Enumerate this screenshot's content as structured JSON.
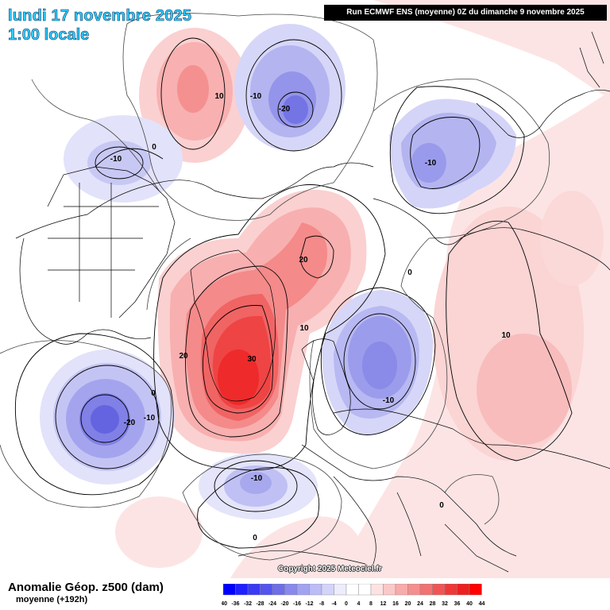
{
  "header": {
    "date": "lundi 17 novembre 2025",
    "time": "1:00 locale",
    "run_info": "Run ECMWF ENS (moyenne) 0Z du dimanche 9 novembre 2025"
  },
  "footer": {
    "title": "Anomalie Géop. z500 (dam)",
    "subtitle": "moyenne   (+192h)",
    "copyright": "Copyright 2025 Meteociel.fr"
  },
  "legend": {
    "values": [
      "-40",
      "-36",
      "-32",
      "-28",
      "-24",
      "-20",
      "-16",
      "-12",
      "-8",
      "-4",
      "0",
      "4",
      "8",
      "12",
      "16",
      "20",
      "24",
      "28",
      "32",
      "36",
      "40",
      "44"
    ],
    "colors": [
      "#0000ff",
      "#1f1fff",
      "#3a3af5",
      "#5454ee",
      "#6e6ee8",
      "#8888ee",
      "#a2a2f2",
      "#bcbcf6",
      "#d4d4fa",
      "#ececfd",
      "#ffffff",
      "#ffffff",
      "#fde2e2",
      "#fbc8c8",
      "#f8abab",
      "#f58f8f",
      "#f27272",
      "#f05555",
      "#ee3838",
      "#ec2020",
      "#ff0000"
    ]
  },
  "contour_labels": [
    {
      "id": "label-10-north-pacific",
      "text": "10"
    },
    {
      "id": "label-m10-bering",
      "text": "-10"
    },
    {
      "id": "label-m20-siberia",
      "text": "-20"
    },
    {
      "id": "label-0-alaska",
      "text": "0"
    },
    {
      "id": "label-m10-alaska",
      "text": "-10"
    },
    {
      "id": "label-m10-east-asia",
      "text": "-10"
    },
    {
      "id": "label-20-arctic",
      "text": "20"
    },
    {
      "id": "label-0-arctic",
      "text": "0"
    },
    {
      "id": "label-10-greenland-east",
      "text": "10"
    },
    {
      "id": "label-20-greenland-west",
      "text": "20"
    },
    {
      "id": "label-30-greenland",
      "text": "30"
    },
    {
      "id": "label-0-labrador",
      "text": "0"
    },
    {
      "id": "label-m10-labrador",
      "text": "-10"
    },
    {
      "id": "label-m20-hudson",
      "text": "-20"
    },
    {
      "id": "label-m10-scandinavia",
      "text": "-10"
    },
    {
      "id": "label-10-asia",
      "text": "10"
    },
    {
      "id": "label-m10-atlantic",
      "text": "-10"
    },
    {
      "id": "label-0-europe",
      "text": "0"
    },
    {
      "id": "label-0-atlantic-south",
      "text": "0"
    }
  ]
}
